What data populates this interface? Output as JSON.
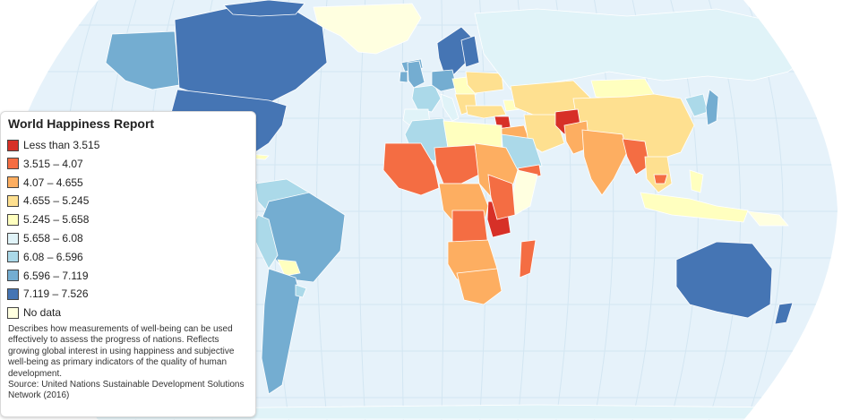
{
  "legend": {
    "title": "World Happiness Report",
    "items": [
      {
        "label": "Less than 3.515",
        "color": "#d73027"
      },
      {
        "label": "3.515 – 4.07",
        "color": "#f46d43"
      },
      {
        "label": "4.07 – 4.655",
        "color": "#fdae61"
      },
      {
        "label": "4.655 – 5.245",
        "color": "#fee090"
      },
      {
        "label": "5.245 – 5.658",
        "color": "#ffffbf"
      },
      {
        "label": "5.658 – 6.08",
        "color": "#e0f3f8"
      },
      {
        "label": "6.08 – 6.596",
        "color": "#abd9e9"
      },
      {
        "label": "6.596 – 7.119",
        "color": "#74add1"
      },
      {
        "label": "7.119 – 7.526",
        "color": "#4575b4"
      },
      {
        "label": "No data",
        "color": "#ffffe0"
      }
    ],
    "description": "Describes how measurements of well-being can be used effectively to assess the progress of nations. Reflects growing global interest in using happiness and subjective well-being as primary indicators of the quality of human development.",
    "source": "Source: United Nations Sustainable Development Solutions Network (2016)"
  },
  "colors": {
    "ocean": "#e6f2fa",
    "graticule": "#d3e6f2",
    "border": "#ffffff"
  }
}
